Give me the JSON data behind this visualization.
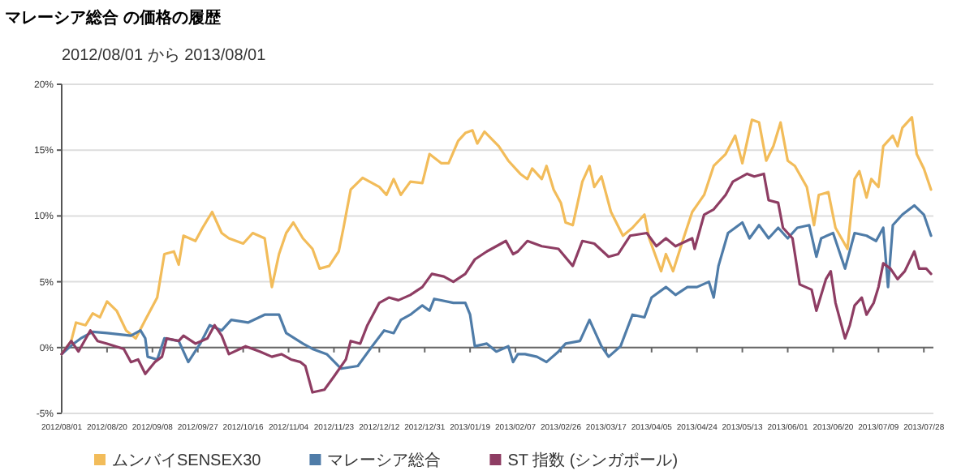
{
  "chart_data": {
    "type": "line",
    "title": "マレーシア総合 の価格の履歴",
    "subtitle": "2012/08/01 から 2013/08/01",
    "xlim": [
      "2012-08-01",
      "2013-08-01"
    ],
    "xticks": [
      {
        "value": "2012-08-01",
        "label": "2012/08/01"
      },
      {
        "value": "2012-08-20",
        "label": "2012/08/20"
      },
      {
        "value": "2012-09-08",
        "label": "2012/09/08"
      },
      {
        "value": "2012-09-27",
        "label": "2012/09/27"
      },
      {
        "value": "2012-10-16",
        "label": "2012/10/16"
      },
      {
        "value": "2012-11-04",
        "label": "2012/11/04"
      },
      {
        "value": "2012-11-23",
        "label": "2012/11/23"
      },
      {
        "value": "2012-12-12",
        "label": "2012/12/12"
      },
      {
        "value": "2012-12-31",
        "label": "2012/12/31"
      },
      {
        "value": "2013-01-19",
        "label": "2013/01/19"
      },
      {
        "value": "2013-02-07",
        "label": "2013/02/07"
      },
      {
        "value": "2013-02-26",
        "label": "2013/02/26"
      },
      {
        "value": "2013-03-17",
        "label": "2013/03/17"
      },
      {
        "value": "2013-04-05",
        "label": "2013/04/05"
      },
      {
        "value": "2013-04-24",
        "label": "2013/04/24"
      },
      {
        "value": "2013-05-13",
        "label": "2013/05/13"
      },
      {
        "value": "2013-06-01",
        "label": "2013/06/01"
      },
      {
        "value": "2013-06-20",
        "label": "2013/06/20"
      },
      {
        "value": "2013-07-09",
        "label": "2013/07/09"
      },
      {
        "value": "2013-07-28",
        "label": "2013/07/28"
      }
    ],
    "ylim": [
      -5,
      20
    ],
    "yticks": [
      {
        "value": -5,
        "label": "-5%"
      },
      {
        "value": 0,
        "label": "0%"
      },
      {
        "value": 5,
        "label": "5%"
      },
      {
        "value": 10,
        "label": "10%"
      },
      {
        "value": 15,
        "label": "15%"
      },
      {
        "value": 20,
        "label": "20%"
      }
    ],
    "grid": "y",
    "legend": "bottom",
    "marker": "none",
    "line_style": "solid",
    "ref_lines": [
      {
        "axis": "y",
        "value": 0,
        "color": "#666666"
      }
    ],
    "series": [
      {
        "name": "ムンバイSENSEX30",
        "color": "#f2bc5a",
        "x": [
          "2012-08-01",
          "2012-08-05",
          "2012-08-07",
          "2012-08-11",
          "2012-08-14",
          "2012-08-17",
          "2012-08-20",
          "2012-08-24",
          "2012-08-28",
          "2012-09-01",
          "2012-09-05",
          "2012-09-10",
          "2012-09-13",
          "2012-09-17",
          "2012-09-19",
          "2012-09-21",
          "2012-09-26",
          "2012-09-29",
          "2012-10-03",
          "2012-10-07",
          "2012-10-10",
          "2012-10-16",
          "2012-10-20",
          "2012-10-25",
          "2012-10-28",
          "2012-10-31",
          "2012-11-03",
          "2012-11-06",
          "2012-11-10",
          "2012-11-14",
          "2012-11-17",
          "2012-11-21",
          "2012-11-25",
          "2012-11-27",
          "2012-11-30",
          "2012-12-05",
          "2012-12-12",
          "2012-12-15",
          "2012-12-18",
          "2012-12-21",
          "2012-12-25",
          "2012-12-30",
          "2013-01-02",
          "2013-01-07",
          "2013-01-10",
          "2013-01-14",
          "2013-01-17",
          "2013-01-20",
          "2013-01-22",
          "2013-01-25",
          "2013-01-31",
          "2013-02-04",
          "2013-02-09",
          "2013-02-12",
          "2013-02-14",
          "2013-02-18",
          "2013-02-20",
          "2013-02-23",
          "2013-02-26",
          "2013-02-28",
          "2013-03-03",
          "2013-03-07",
          "2013-03-10",
          "2013-03-12",
          "2013-03-15",
          "2013-03-19",
          "2013-03-24",
          "2013-03-28",
          "2013-04-02",
          "2013-04-04",
          "2013-04-09",
          "2013-04-11",
          "2013-04-14",
          "2013-04-18",
          "2013-04-22",
          "2013-04-27",
          "2013-05-01",
          "2013-05-06",
          "2013-05-10",
          "2013-05-13",
          "2013-05-17",
          "2013-05-20",
          "2013-05-23",
          "2013-05-26",
          "2013-05-29",
          "2013-06-01",
          "2013-06-04",
          "2013-06-09",
          "2013-06-12",
          "2013-06-14",
          "2013-06-18",
          "2013-06-21",
          "2013-06-26",
          "2013-06-29",
          "2013-07-01",
          "2013-07-04",
          "2013-07-06",
          "2013-07-09",
          "2013-07-11",
          "2013-07-15",
          "2013-07-17",
          "2013-07-19",
          "2013-07-23",
          "2013-07-25",
          "2013-07-28",
          "2013-07-31"
        ],
        "values": [
          -0.5,
          0.5,
          1.9,
          1.7,
          2.6,
          2.3,
          3.5,
          2.8,
          1.3,
          0.7,
          2.1,
          3.8,
          7.1,
          7.3,
          6.3,
          8.5,
          8.1,
          9.1,
          10.3,
          8.7,
          8.3,
          7.9,
          8.7,
          8.3,
          4.6,
          7.1,
          8.7,
          9.5,
          8.3,
          7.5,
          6.0,
          6.2,
          7.3,
          9.1,
          12.0,
          12.9,
          12.2,
          11.6,
          12.8,
          11.6,
          12.6,
          12.5,
          14.7,
          14.0,
          14.0,
          15.7,
          16.3,
          16.5,
          15.5,
          16.4,
          15.3,
          14.2,
          13.2,
          12.8,
          13.6,
          12.8,
          13.8,
          12.0,
          11.0,
          9.5,
          9.3,
          12.6,
          13.8,
          12.2,
          13.0,
          10.3,
          8.5,
          9.1,
          10.1,
          8.3,
          5.8,
          7.1,
          5.8,
          8.1,
          10.3,
          11.6,
          13.8,
          14.7,
          16.1,
          14.0,
          17.3,
          17.1,
          14.2,
          15.3,
          17.1,
          14.2,
          13.8,
          12.2,
          9.3,
          11.6,
          11.8,
          9.1,
          7.5,
          12.8,
          13.4,
          11.4,
          12.8,
          12.2,
          15.3,
          16.1,
          15.3,
          16.7,
          17.5,
          14.7,
          13.6,
          12.0
        ]
      },
      {
        "name": "マレーシア総合",
        "color": "#4f7ca8",
        "x": [
          "2012-08-01",
          "2012-08-06",
          "2012-08-09",
          "2012-08-14",
          "2012-08-20",
          "2012-08-30",
          "2012-09-03",
          "2012-09-05",
          "2012-09-06",
          "2012-09-10",
          "2012-09-13",
          "2012-09-19",
          "2012-09-23",
          "2012-09-28",
          "2012-10-02",
          "2012-10-07",
          "2012-10-11",
          "2012-10-18",
          "2012-10-25",
          "2012-10-31",
          "2012-11-03",
          "2012-11-10",
          "2012-11-14",
          "2012-11-20",
          "2012-11-26",
          "2012-12-03",
          "2012-12-09",
          "2012-12-14",
          "2012-12-18",
          "2012-12-21",
          "2012-12-25",
          "2012-12-30",
          "2013-01-02",
          "2013-01-04",
          "2013-01-12",
          "2013-01-17",
          "2013-01-19",
          "2013-01-21",
          "2013-01-26",
          "2013-01-30",
          "2013-02-04",
          "2013-02-06",
          "2013-02-08",
          "2013-02-11",
          "2013-02-16",
          "2013-02-20",
          "2013-02-25",
          "2013-02-28",
          "2013-03-06",
          "2013-03-10",
          "2013-03-15",
          "2013-03-18",
          "2013-03-23",
          "2013-03-28",
          "2013-04-02",
          "2013-04-05",
          "2013-04-11",
          "2013-04-15",
          "2013-04-20",
          "2013-04-24",
          "2013-04-29",
          "2013-05-01",
          "2013-05-03",
          "2013-05-07",
          "2013-05-13",
          "2013-05-16",
          "2013-05-20",
          "2013-05-24",
          "2013-05-28",
          "2013-06-01",
          "2013-06-05",
          "2013-06-10",
          "2013-06-13",
          "2013-06-15",
          "2013-06-20",
          "2013-06-25",
          "2013-06-29",
          "2013-07-04",
          "2013-07-08",
          "2013-07-11",
          "2013-07-13",
          "2013-07-15",
          "2013-07-19",
          "2013-07-24",
          "2013-07-28",
          "2013-07-31"
        ],
        "values": [
          -0.5,
          0.3,
          0.7,
          1.2,
          1.1,
          0.9,
          1.3,
          0.7,
          -0.7,
          -0.9,
          0.7,
          0.5,
          -1.1,
          0.3,
          1.7,
          1.3,
          2.1,
          1.9,
          2.5,
          2.5,
          1.1,
          0.3,
          -0.1,
          -0.5,
          -1.6,
          -1.4,
          0.1,
          1.3,
          1.1,
          2.1,
          2.5,
          3.2,
          2.8,
          3.7,
          3.4,
          3.4,
          2.5,
          0.1,
          0.3,
          -0.3,
          0.1,
          -1.1,
          -0.5,
          -0.5,
          -0.7,
          -1.1,
          -0.3,
          0.3,
          0.5,
          2.1,
          0.1,
          -0.7,
          0.1,
          2.5,
          2.3,
          3.8,
          4.6,
          4.0,
          4.6,
          4.6,
          5.0,
          3.8,
          6.2,
          8.7,
          9.5,
          8.3,
          9.3,
          8.3,
          9.1,
          8.3,
          9.1,
          9.3,
          6.9,
          8.3,
          8.7,
          6.0,
          8.7,
          8.5,
          8.1,
          9.1,
          4.6,
          9.3,
          10.1,
          10.8,
          10.1,
          8.5
        ]
      },
      {
        "name": "ST 指数 (シンガポール)",
        "color": "#8e3d63",
        "x": [
          "2012-08-01",
          "2012-08-05",
          "2012-08-08",
          "2012-08-13",
          "2012-08-16",
          "2012-08-20",
          "2012-08-27",
          "2012-08-30",
          "2012-09-02",
          "2012-09-05",
          "2012-09-09",
          "2012-09-12",
          "2012-09-14",
          "2012-09-19",
          "2012-09-21",
          "2012-09-26",
          "2012-10-01",
          "2012-10-04",
          "2012-10-07",
          "2012-10-10",
          "2012-10-17",
          "2012-10-23",
          "2012-10-28",
          "2012-11-01",
          "2012-11-05",
          "2012-11-09",
          "2012-11-11",
          "2012-11-14",
          "2012-11-19",
          "2012-11-23",
          "2012-11-28",
          "2012-11-30",
          "2012-12-04",
          "2012-12-07",
          "2012-12-12",
          "2012-12-16",
          "2012-12-20",
          "2012-12-25",
          "2012-12-30",
          "2013-01-03",
          "2013-01-08",
          "2013-01-12",
          "2013-01-17",
          "2013-01-21",
          "2013-01-26",
          "2013-01-30",
          "2013-02-03",
          "2013-02-06",
          "2013-02-08",
          "2013-02-12",
          "2013-02-18",
          "2013-02-25",
          "2013-03-03",
          "2013-03-07",
          "2013-03-12",
          "2013-03-18",
          "2013-03-22",
          "2013-03-27",
          "2013-04-03",
          "2013-04-07",
          "2013-04-11",
          "2013-04-15",
          "2013-04-22",
          "2013-04-23",
          "2013-04-27",
          "2013-05-01",
          "2013-05-06",
          "2013-05-09",
          "2013-05-15",
          "2013-05-18",
          "2013-05-22",
          "2013-05-24",
          "2013-05-28",
          "2013-05-30",
          "2013-06-03",
          "2013-06-06",
          "2013-06-11",
          "2013-06-13",
          "2013-06-17",
          "2013-06-19",
          "2013-06-21",
          "2013-06-25",
          "2013-06-27",
          "2013-06-29",
          "2013-07-02",
          "2013-07-04",
          "2013-07-07",
          "2013-07-09",
          "2013-07-11",
          "2013-07-14",
          "2013-07-17",
          "2013-07-20",
          "2013-07-24",
          "2013-07-26",
          "2013-07-29",
          "2013-07-31"
        ],
        "values": [
          -0.5,
          0.5,
          -0.3,
          1.3,
          0.5,
          0.3,
          -0.1,
          -1.1,
          -0.9,
          -2.0,
          -1.1,
          -0.7,
          0.7,
          0.5,
          0.9,
          0.3,
          0.7,
          1.7,
          0.9,
          -0.5,
          0.1,
          -0.3,
          -0.7,
          -0.5,
          -0.9,
          -1.1,
          -1.4,
          -3.4,
          -3.2,
          -2.2,
          -0.9,
          0.5,
          0.3,
          1.7,
          3.4,
          3.8,
          3.6,
          4.0,
          4.6,
          5.6,
          5.4,
          5.0,
          5.6,
          6.7,
          7.3,
          7.7,
          8.1,
          7.1,
          7.3,
          8.1,
          7.7,
          7.5,
          6.2,
          8.1,
          7.9,
          6.9,
          7.1,
          8.5,
          8.7,
          7.7,
          8.3,
          7.7,
          8.3,
          7.5,
          10.1,
          10.5,
          11.6,
          12.6,
          13.2,
          13.0,
          13.2,
          11.2,
          11.0,
          9.1,
          8.3,
          4.8,
          4.4,
          2.8,
          5.2,
          5.8,
          3.4,
          0.7,
          1.7,
          3.2,
          3.8,
          2.5,
          3.4,
          4.6,
          6.4,
          6.0,
          5.2,
          5.8,
          7.3,
          6.0,
          6.0,
          5.6
        ]
      }
    ]
  }
}
